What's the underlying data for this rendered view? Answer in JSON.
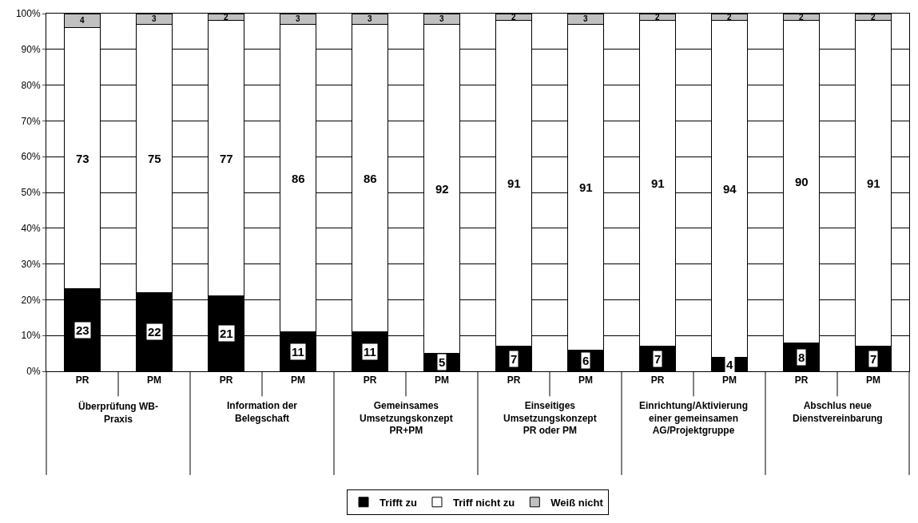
{
  "chart_data": {
    "type": "bar",
    "stacked": true,
    "data_labels": true,
    "grid": "y",
    "legend": "bottom",
    "categories": [
      "PR",
      "PM",
      "PR",
      "PM",
      "PR",
      "PM",
      "PR",
      "PM",
      "PR",
      "PM",
      "PR",
      "PM"
    ],
    "annotations": [
      "Überprüfung WB-\nPraxis",
      "Information der\nBelegschaft",
      "Gemeinsames\nUmsetzungskonzept\nPR+PM",
      "Einseitiges\nUmsetzungskonzept\nPR oder PM",
      "Einrichtung/Aktivierung\neiner gemeinsamen\nAG/Projektgruppe",
      "Abschlus neue\nDienstvereinbarung"
    ],
    "ylim": [
      0,
      100
    ],
    "yticks": [
      {
        "value": 0,
        "label": "0%"
      },
      {
        "value": 10,
        "label": "10%"
      },
      {
        "value": 20,
        "label": "20%"
      },
      {
        "value": 30,
        "label": "30%"
      },
      {
        "value": 40,
        "label": "40%"
      },
      {
        "value": 50,
        "label": "50%"
      },
      {
        "value": 60,
        "label": "60%"
      },
      {
        "value": 70,
        "label": "70%"
      },
      {
        "value": 80,
        "label": "80%"
      },
      {
        "value": 90,
        "label": "90%"
      },
      {
        "value": 100,
        "label": "100%"
      }
    ],
    "series": [
      {
        "name": "Trifft zu",
        "color": "#000000",
        "values": [
          23,
          22,
          21,
          11,
          11,
          5,
          7,
          6,
          7,
          4,
          8,
          7
        ]
      },
      {
        "name": "Triff nicht zu",
        "color": "#ffffff",
        "values": [
          73,
          75,
          77,
          86,
          86,
          92,
          91,
          91,
          91,
          94,
          90,
          91
        ]
      },
      {
        "name": "Weiß nicht",
        "color": "#c0c0c0",
        "values": [
          4,
          3,
          2,
          3,
          3,
          3,
          2,
          3,
          2,
          2,
          2,
          2
        ]
      }
    ]
  }
}
